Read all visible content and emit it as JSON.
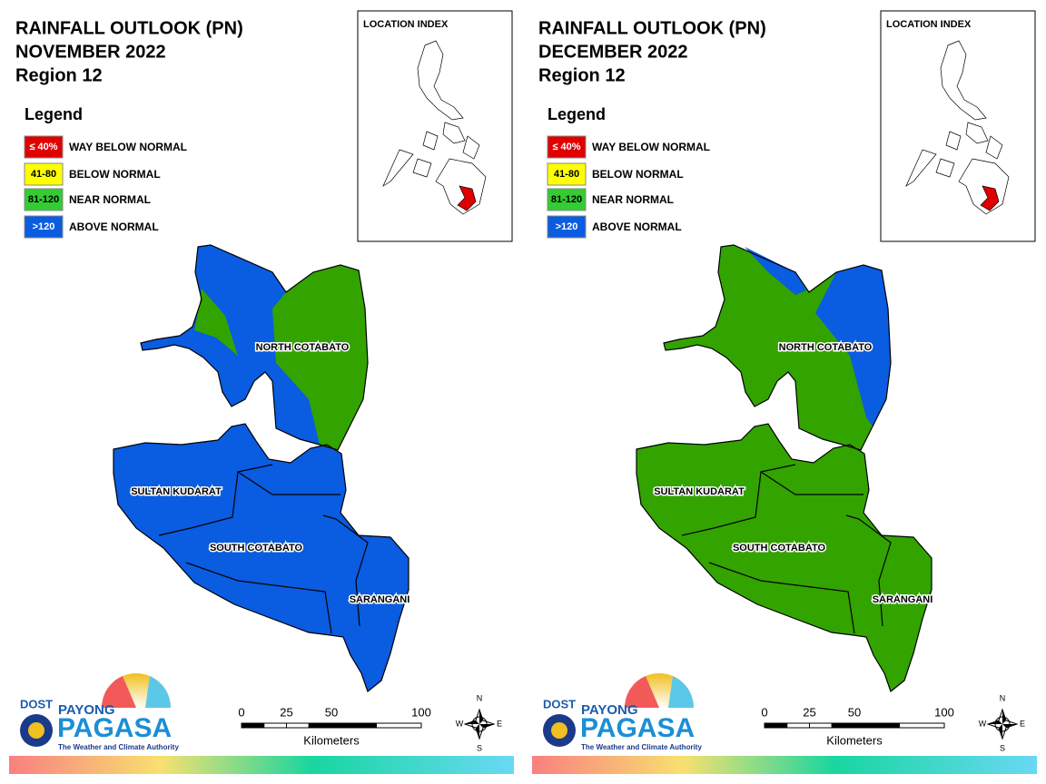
{
  "panels": [
    {
      "title": [
        "RAINFALL OUTLOOK (PN)",
        "NOVEMBER 2022",
        "Region 12"
      ],
      "legend": {
        "title": "Legend",
        "items": [
          {
            "label": "≤ 40%",
            "name": "WAY BELOW NORMAL",
            "color": "#e00000"
          },
          {
            "label": "41-80",
            "name": "BELOW NORMAL",
            "color": "#ffff00"
          },
          {
            "label": "81-120",
            "name": "NEAR NORMAL",
            "color": "#33cc33"
          },
          {
            "label": ">120",
            "name": "ABOVE NORMAL",
            "color": "#0a5ce0"
          }
        ]
      },
      "location_index": "LOCATION INDEX",
      "provinces": [
        "NORTH COTABATO",
        "SULTAN KUDARAT",
        "SOUTH COTABATO",
        "SARANGANI"
      ],
      "scale": {
        "ticks": [
          0,
          25,
          50,
          100
        ],
        "unit": "Kilometers"
      },
      "compass": [
        "N",
        "E",
        "S",
        "W"
      ],
      "logo": {
        "agency": "DOST",
        "brand_top": "PAYONG",
        "brand": "PAGASA",
        "tagline": "The Weather and Climate Authority"
      }
    },
    {
      "title": [
        "RAINFALL OUTLOOK (PN)",
        "DECEMBER 2022",
        "Region 12"
      ],
      "legend": {
        "title": "Legend",
        "items": [
          {
            "label": "≤ 40%",
            "name": "WAY BELOW NORMAL",
            "color": "#e00000"
          },
          {
            "label": "41-80",
            "name": "BELOW NORMAL",
            "color": "#ffff00"
          },
          {
            "label": "81-120",
            "name": "NEAR NORMAL",
            "color": "#33cc33"
          },
          {
            "label": ">120",
            "name": "ABOVE NORMAL",
            "color": "#0a5ce0"
          }
        ]
      },
      "location_index": "LOCATION INDEX",
      "provinces": [
        "NORTH COTABATO",
        "SULTAN KUDARAT",
        "SOUTH COTABATO",
        "SARANGANI"
      ],
      "scale": {
        "ticks": [
          0,
          25,
          50,
          100
        ],
        "unit": "Kilometers"
      },
      "compass": [
        "N",
        "E",
        "S",
        "W"
      ],
      "logo": {
        "agency": "DOST",
        "brand_top": "PAYONG",
        "brand": "PAGASA",
        "tagline": "The Weather and Climate Authority"
      }
    }
  ]
}
